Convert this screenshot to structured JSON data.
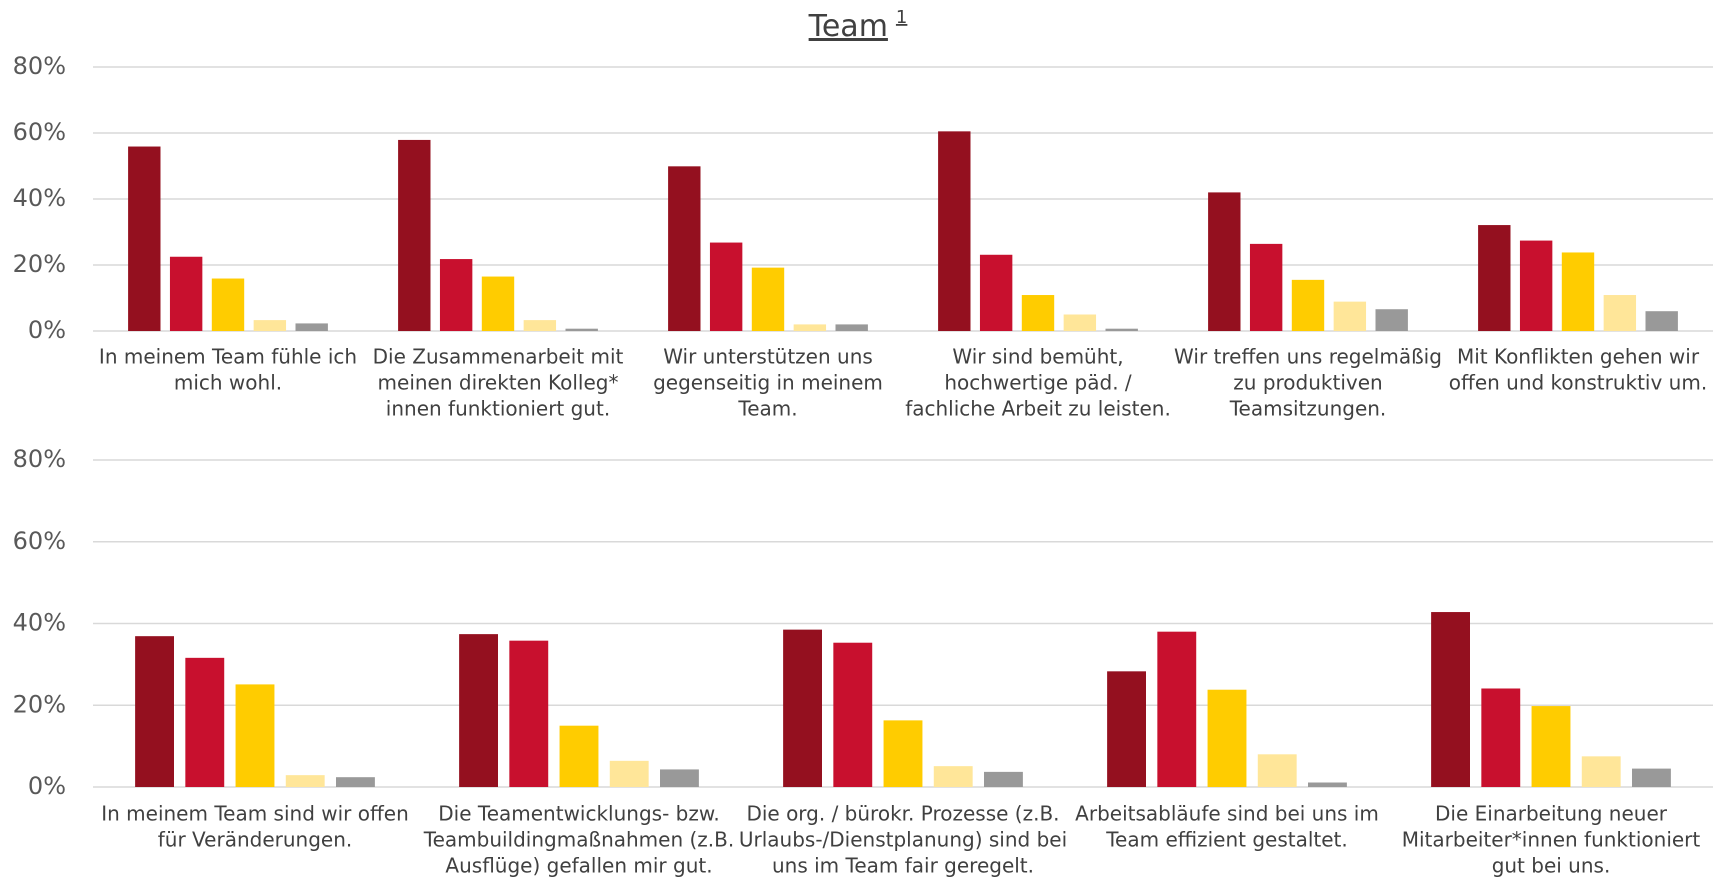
{
  "title": "Team",
  "title_note": "1",
  "chart_data": [
    {
      "type": "bar",
      "categories": [
        [
          "In meinem Team fühle ich",
          "mich wohl."
        ],
        [
          "Die Zusammenarbeit mit",
          "meinen direkten Kolleg*",
          "innen funktioniert gut."
        ],
        [
          "Wir unterstützen uns",
          "gegenseitig in meinem",
          "Team."
        ],
        [
          "Wir sind bemüht,",
          "hochwertige päd. /",
          "fachliche Arbeit zu leisten."
        ],
        [
          "Wir treffen uns regelmäßig",
          "zu produktiven",
          "Teamsitzungen."
        ],
        [
          "Mit Konflikten gehen wir",
          "offen und konstruktiv um."
        ]
      ],
      "series": [
        {
          "color": "#94101f",
          "values": [
            55.9,
            57.9,
            49.9,
            60.5,
            42,
            32.1
          ]
        },
        {
          "color": "#c8102e",
          "values": [
            22.5,
            21.8,
            26.8,
            23.1,
            26.4,
            27.4
          ]
        },
        {
          "color": "#ffcc00",
          "values": [
            15.9,
            16.5,
            19.2,
            10.9,
            15.5,
            23.8
          ]
        },
        {
          "color": "#ffe699",
          "values": [
            3.3,
            3.3,
            2,
            5,
            8.9,
            10.9
          ]
        },
        {
          "color": "#999999",
          "values": [
            2.3,
            0.7,
            2,
            0.7,
            6.6,
            6
          ]
        }
      ],
      "ylim": [
        0,
        80
      ],
      "yticks": [
        {
          "value": 0,
          "label": "0%"
        },
        {
          "value": 20,
          "label": "20%"
        },
        {
          "value": 40,
          "label": "40%"
        },
        {
          "value": 60,
          "label": "60%"
        },
        {
          "value": 80,
          "label": "80%"
        }
      ],
      "grid": true
    },
    {
      "type": "bar",
      "categories": [
        [
          "In meinem Team sind wir offen",
          "für Veränderungen."
        ],
        [
          "Die Teamentwicklungs- bzw.",
          "Teambuildingmaßnahmen (z.B.",
          "Ausflüge) gefallen mir gut."
        ],
        [
          "Die org. / bürokr. Prozesse (z.B.",
          "Urlaubs-/Dienstplanung) sind bei",
          "uns im Team fair geregelt."
        ],
        [
          "Arbeitsabläufe sind bei uns im",
          "Team effizient gestaltet."
        ],
        [
          "Die Einarbeitung neuer",
          "Mitarbeiter*innen funktioniert",
          "gut bei uns."
        ]
      ],
      "series": [
        {
          "color": "#94101f",
          "values": [
            36.9,
            37.4,
            38.5,
            28.3,
            42.8
          ]
        },
        {
          "color": "#c8102e",
          "values": [
            31.6,
            35.8,
            35.3,
            38,
            24.1
          ]
        },
        {
          "color": "#ffcc00",
          "values": [
            25.1,
            15,
            16.3,
            23.8,
            19.8
          ]
        },
        {
          "color": "#ffe699",
          "values": [
            2.9,
            6.4,
            5.1,
            8,
            7.5
          ]
        },
        {
          "color": "#999999",
          "values": [
            2.4,
            4.3,
            3.7,
            1.1,
            4.5
          ]
        }
      ],
      "ylim": [
        0,
        80
      ],
      "yticks": [
        {
          "value": 0,
          "label": "0%"
        },
        {
          "value": 20,
          "label": "20%"
        },
        {
          "value": 40,
          "label": "40%"
        },
        {
          "value": 60,
          "label": "60%"
        },
        {
          "value": 80,
          "label": "80%"
        }
      ],
      "grid": true
    }
  ]
}
